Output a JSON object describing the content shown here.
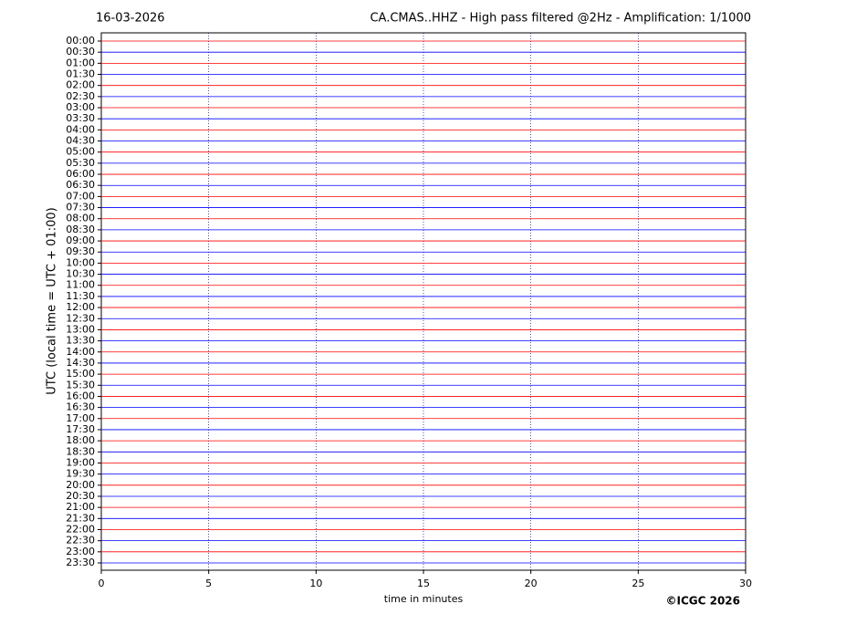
{
  "chart_data": {
    "type": "helicorder",
    "date": "16-03-2026",
    "title": "CA.CMAS..HHZ - High pass filtered @2Hz - Amplification: 1/1000",
    "ylabel": "UTC (local time = UTC + 01:00)",
    "xlabel": "time in minutes",
    "credit": "©ICGC 2026",
    "xlim": [
      0,
      30
    ],
    "xticks": [
      0,
      5,
      10,
      15,
      20,
      25,
      30
    ],
    "grid": true,
    "row_colors": [
      "#ff0000",
      "#0000ff"
    ],
    "categories": [
      "00:00",
      "00:30",
      "01:00",
      "01:30",
      "02:00",
      "02:30",
      "03:00",
      "03:30",
      "04:00",
      "04:30",
      "05:00",
      "05:30",
      "06:00",
      "06:30",
      "07:00",
      "07:30",
      "08:00",
      "08:30",
      "09:00",
      "09:30",
      "10:00",
      "10:30",
      "11:00",
      "11:30",
      "12:00",
      "12:30",
      "13:00",
      "13:30",
      "14:00",
      "14:30",
      "15:00",
      "15:30",
      "16:00",
      "16:30",
      "17:00",
      "17:30",
      "18:00",
      "18:30",
      "19:00",
      "19:30",
      "20:00",
      "20:30",
      "21:00",
      "21:30",
      "22:00",
      "22:30",
      "23:00",
      "23:30"
    ]
  }
}
